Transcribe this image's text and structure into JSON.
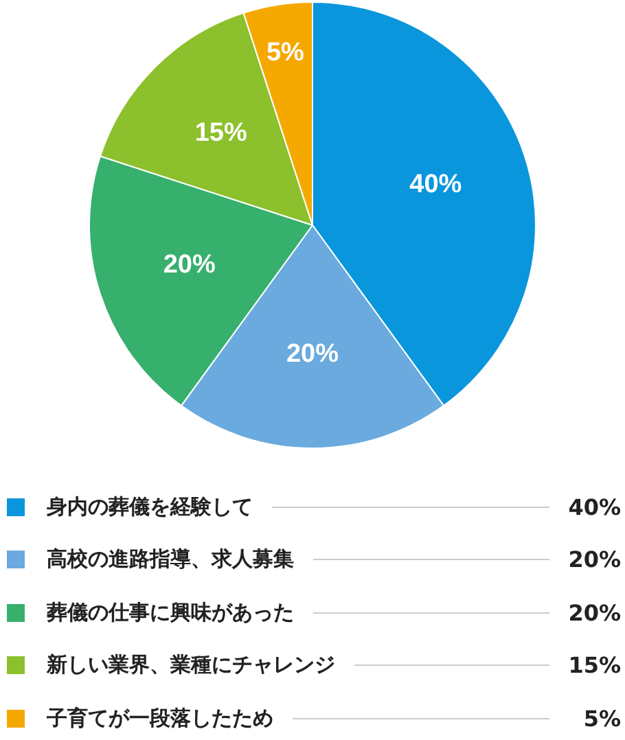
{
  "chart_data": {
    "type": "pie",
    "categories": [
      "身内の葬儀を経験して",
      "高校の進路指導、求人募集",
      "葬儀の仕事に興味があった",
      "新しい業界、業種にチャレンジ",
      "子育てが一段落したため"
    ],
    "values": [
      40,
      20,
      20,
      15,
      5
    ],
    "colors": [
      "#0a96dc",
      "#6aaade",
      "#36b06c",
      "#8cc02c",
      "#f5a800"
    ],
    "value_labels": [
      "40%",
      "20%",
      "20%",
      "15%",
      "5%"
    ],
    "legend": "bottom"
  }
}
